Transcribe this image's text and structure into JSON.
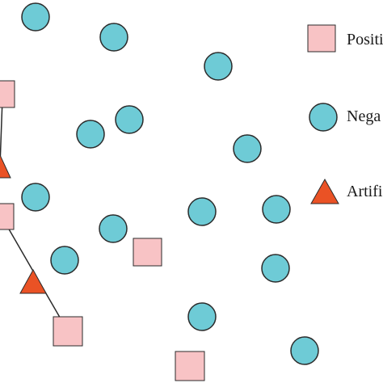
{
  "colors": {
    "positive_fill": "#f8c3c5",
    "negative_fill": "#6ecbd6",
    "artificial_fill": "#ea5225",
    "outline": "#2b2b2b",
    "connector": "#2b2b2b"
  },
  "legend": {
    "positive": {
      "label": "Positi",
      "icon": "square-icon"
    },
    "negative": {
      "label": "Nega",
      "icon": "circle-icon"
    },
    "artificial": {
      "label": "Artifi",
      "icon": "triangle-icon"
    }
  }
}
